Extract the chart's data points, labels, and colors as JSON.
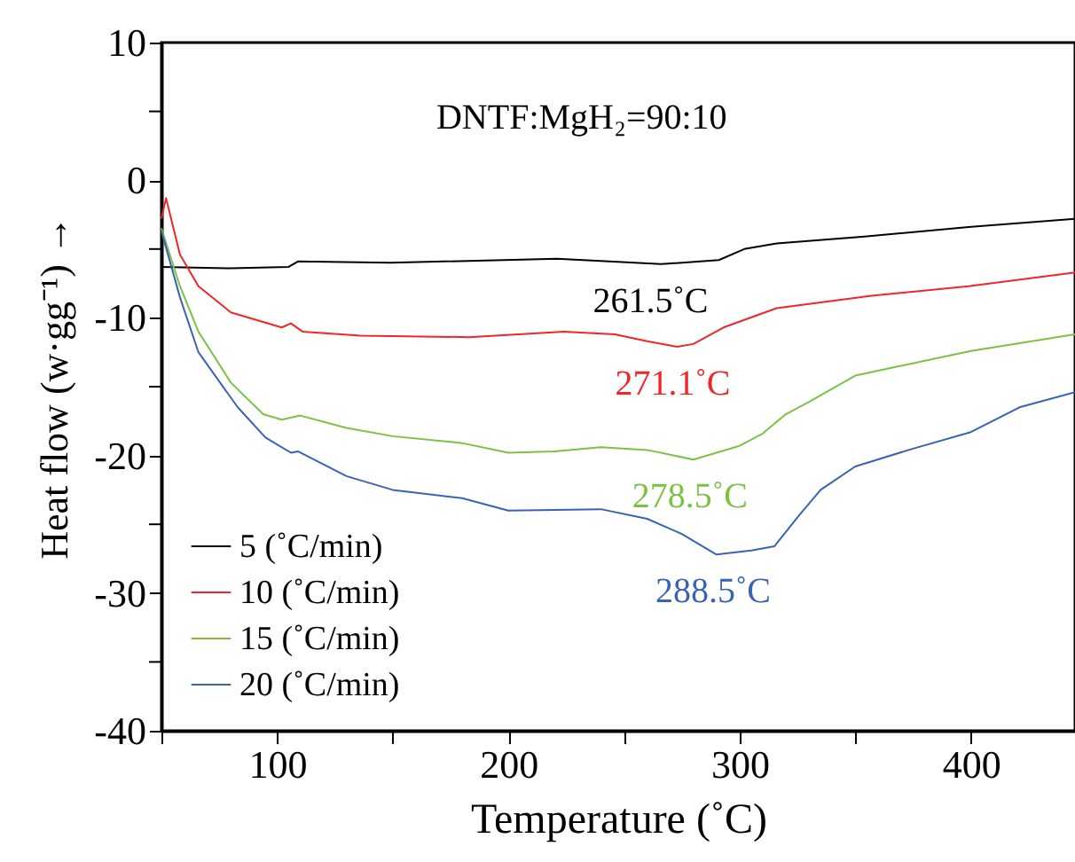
{
  "chart_data": {
    "type": "line",
    "xlabel": "Temperature (˚C)",
    "ylabel": "Heat flow  (w·gg⁻¹) →",
    "xlim": [
      50,
      445
    ],
    "ylim": [
      -40,
      10
    ],
    "xticks": [
      {
        "value": 50,
        "label": null
      },
      100,
      {
        "value": 150,
        "label": null
      },
      200,
      {
        "value": 250,
        "label": null
      },
      300,
      {
        "value": 350,
        "label": null
      },
      400
    ],
    "yticks": [
      -40,
      {
        "value": -35,
        "label": null
      },
      -30,
      {
        "value": -25,
        "label": null
      },
      -20,
      {
        "value": -15,
        "label": null
      },
      -10,
      {
        "value": -5,
        "label": null
      },
      0,
      {
        "value": 5,
        "label": null
      },
      10
    ],
    "grid": false,
    "legend": "bottom left",
    "line_style": "solid",
    "marker": "none",
    "annotations": [
      "DNTF:MgH₂=90:10",
      {
        "text": "261.5˚C",
        "x": 261.5,
        "y": -6.1
      },
      {
        "text": "271.1˚C",
        "x": 271.1,
        "y": -12.1
      },
      {
        "text": "278.5˚C",
        "x": 278.5,
        "y": -20.3
      },
      {
        "text": "288.5˚C",
        "x": 288.5,
        "y": -27.2
      }
    ],
    "series": [
      {
        "name": "5 (˚C/min)",
        "color": "#000000",
        "x": [
          50,
          80,
          105,
          109,
          149,
          221,
          266,
          291,
          302,
          316,
          354,
          399,
          445
        ],
        "values": [
          -6.3,
          -6.4,
          -6.3,
          -5.9,
          -6.0,
          -5.7,
          -6.1,
          -5.8,
          -5.0,
          -4.6,
          -4.1,
          -3.4,
          -2.8
        ]
      },
      {
        "name": "10 (˚C/min)",
        "color": "#f0262a",
        "x": [
          50,
          52,
          58,
          66,
          80,
          102,
          106,
          111,
          136,
          183,
          224,
          246,
          260,
          273,
          280,
          293,
          316,
          357,
          399,
          445
        ],
        "values": [
          -2.8,
          -1.3,
          -5.4,
          -7.7,
          -9.6,
          -10.7,
          -10.4,
          -11.0,
          -11.3,
          -11.4,
          -11.0,
          -11.2,
          -11.7,
          -12.1,
          -11.9,
          -10.7,
          -9.3,
          -8.4,
          -7.7,
          -6.7
        ]
      },
      {
        "name": "15 (˚C/min)",
        "color": "#7cc242",
        "x": [
          50,
          58,
          66,
          80,
          94,
          102,
          110,
          130,
          150,
          180,
          200,
          220,
          240,
          260,
          280,
          300,
          310,
          320,
          330,
          350,
          400,
          445
        ],
        "values": [
          -3.5,
          -7.7,
          -11.0,
          -14.7,
          -17.0,
          -17.4,
          -17.1,
          -18.0,
          -18.6,
          -19.1,
          -19.8,
          -19.7,
          -19.4,
          -19.6,
          -20.3,
          -19.3,
          -18.4,
          -17.0,
          -16.1,
          -14.2,
          -12.4,
          -11.2
        ]
      },
      {
        "name": "20 (˚C/min)",
        "color": "#3a62b4",
        "x": [
          50,
          58,
          66,
          83,
          95,
          106,
          109,
          130,
          150,
          180,
          200,
          240,
          260,
          275,
          290,
          305,
          315,
          325,
          335,
          350,
          375,
          400,
          421,
          445
        ],
        "values": [
          -3.7,
          -8.5,
          -12.5,
          -16.5,
          -18.7,
          -19.8,
          -19.7,
          -21.5,
          -22.5,
          -23.1,
          -24.0,
          -23.9,
          -24.6,
          -25.7,
          -27.2,
          -26.9,
          -26.6,
          -24.5,
          -22.5,
          -20.8,
          -19.5,
          -18.3,
          -16.5,
          -15.4
        ]
      }
    ]
  }
}
